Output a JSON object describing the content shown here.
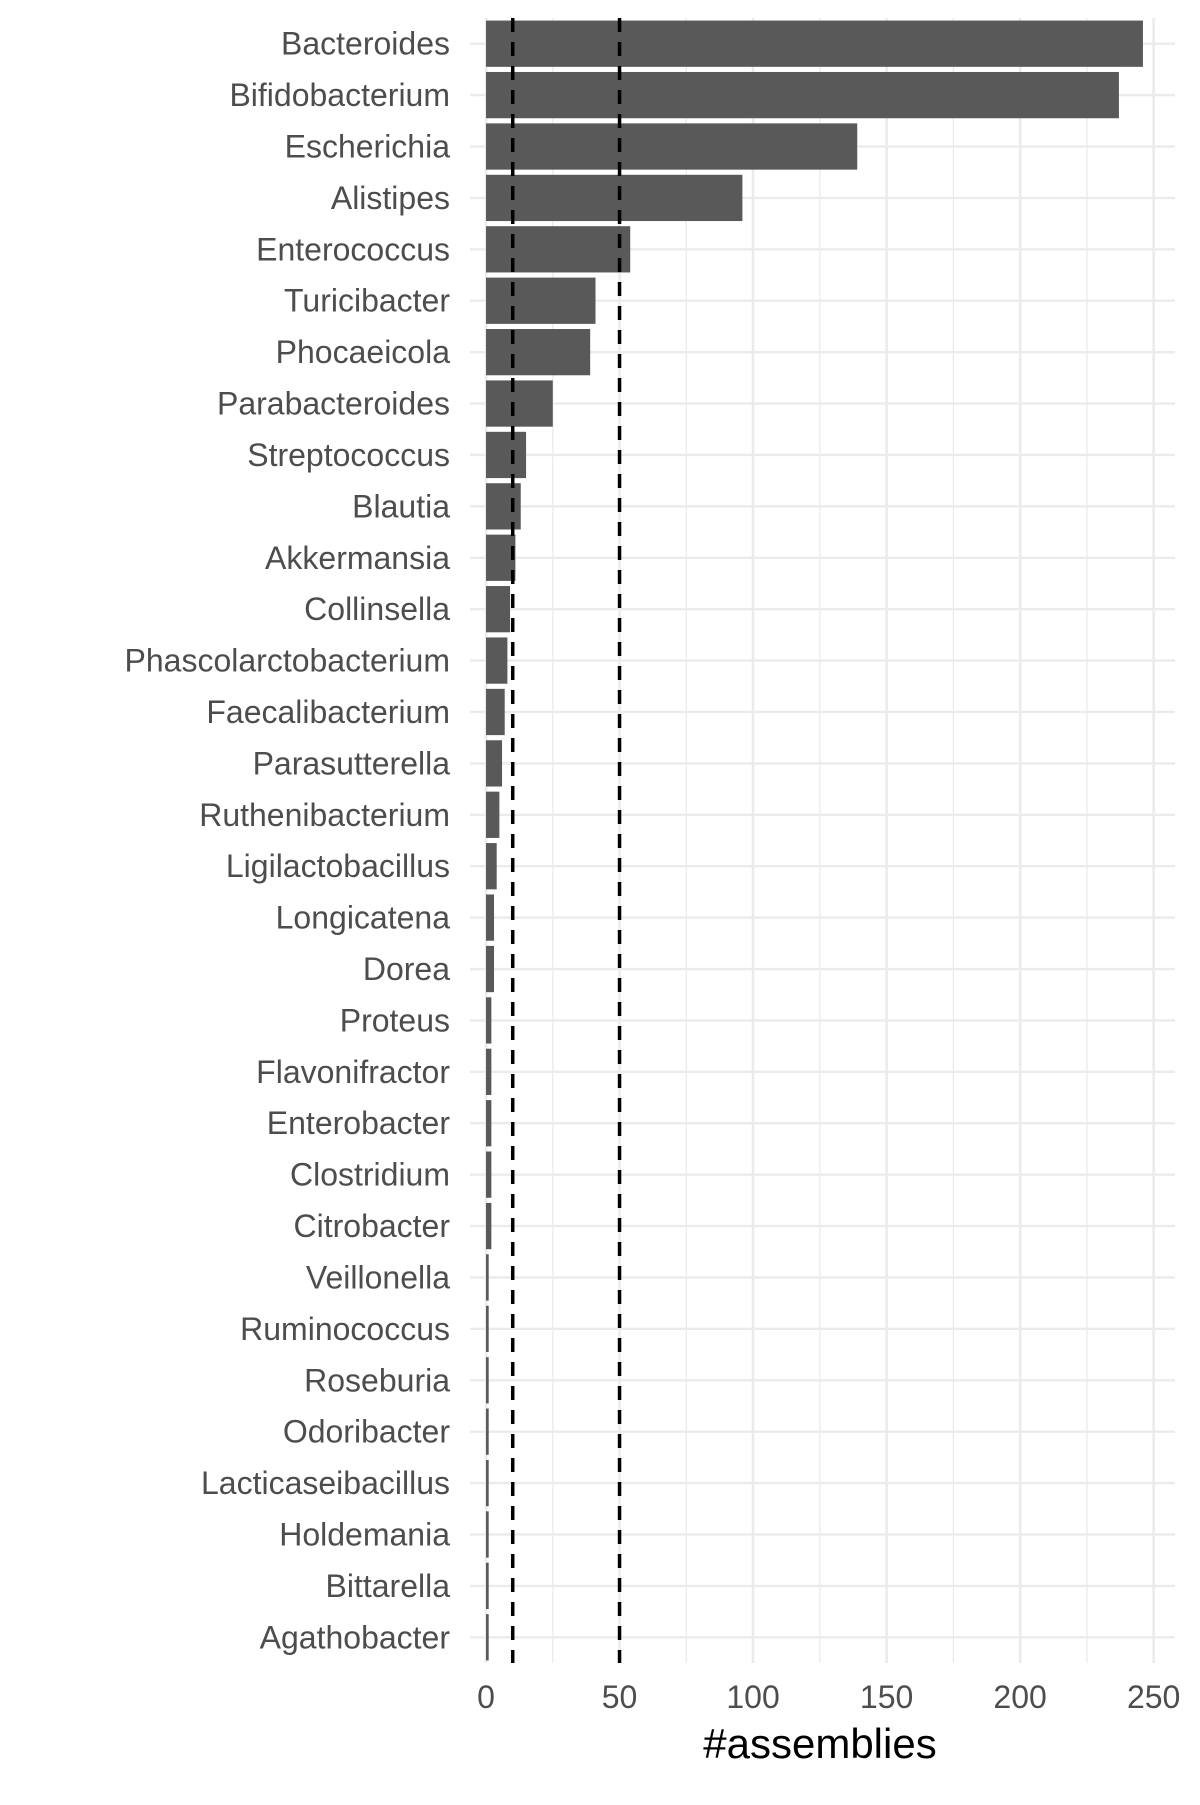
{
  "chart_data": {
    "type": "bar",
    "orientation": "horizontal",
    "title": "",
    "xlabel": "#assemblies",
    "ylabel": "",
    "xlim": [
      -6,
      258
    ],
    "x_ticks": [
      0,
      50,
      100,
      150,
      200,
      250
    ],
    "x_tick_labels": [
      "0",
      "50",
      "100",
      "150",
      "200",
      "250"
    ],
    "grid": true,
    "legend": "none",
    "bar_color": "#595959",
    "grid_color": "#ebebeb",
    "reference_lines": [
      {
        "x": 10,
        "style": "dashed",
        "color": "#000000"
      },
      {
        "x": 50,
        "style": "dashed",
        "color": "#000000"
      }
    ],
    "categories": [
      "Bacteroides",
      "Bifidobacterium",
      "Escherichia",
      "Alistipes",
      "Enterococcus",
      "Turicibacter",
      "Phocaeicola",
      "Parabacteroides",
      "Streptococcus",
      "Blautia",
      "Akkermansia",
      "Collinsella",
      "Phascolarctobacterium",
      "Faecalibacterium",
      "Parasutterella",
      "Ruthenibacterium",
      "Ligilactobacillus",
      "Longicatena",
      "Dorea",
      "Proteus",
      "Flavonifractor",
      "Enterobacter",
      "Clostridium",
      "Citrobacter",
      "Veillonella",
      "Ruminococcus",
      "Roseburia",
      "Odoribacter",
      "Lacticaseibacillus",
      "Holdemania",
      "Bittarella",
      "Agathobacter"
    ],
    "values": [
      246,
      237,
      139,
      96,
      54,
      41,
      39,
      25,
      15,
      13,
      11,
      9,
      8,
      7,
      6,
      5,
      4,
      3,
      3,
      2,
      2,
      2,
      2,
      2,
      1,
      1,
      1,
      1,
      1,
      1,
      1,
      1
    ]
  }
}
